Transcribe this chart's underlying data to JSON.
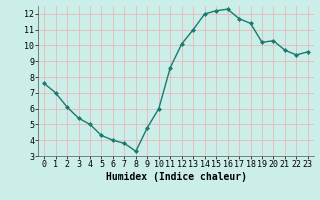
{
  "x": [
    0,
    1,
    2,
    3,
    4,
    5,
    6,
    7,
    8,
    9,
    10,
    11,
    12,
    13,
    14,
    15,
    16,
    17,
    18,
    19,
    20,
    21,
    22,
    23
  ],
  "y": [
    7.6,
    7.0,
    6.1,
    5.4,
    5.0,
    4.3,
    4.0,
    3.8,
    3.3,
    4.8,
    6.0,
    8.6,
    10.1,
    11.0,
    12.0,
    12.2,
    12.3,
    11.7,
    11.4,
    10.2,
    10.3,
    9.7,
    9.4,
    9.6
  ],
  "line_color": "#1a7a6e",
  "marker": "D",
  "marker_size": 2.0,
  "bg_color": "#cceee8",
  "grid_color": "#e8b8b8",
  "xlabel": "Humidex (Indice chaleur)",
  "ylim": [
    3,
    12.5
  ],
  "xlim": [
    -0.5,
    23.5
  ],
  "yticks": [
    3,
    4,
    5,
    6,
    7,
    8,
    9,
    10,
    11,
    12
  ],
  "xticks": [
    0,
    1,
    2,
    3,
    4,
    5,
    6,
    7,
    8,
    9,
    10,
    11,
    12,
    13,
    14,
    15,
    16,
    17,
    18,
    19,
    20,
    21,
    22,
    23
  ],
  "xlabel_fontsize": 7,
  "tick_fontsize": 6,
  "linewidth": 1.0
}
